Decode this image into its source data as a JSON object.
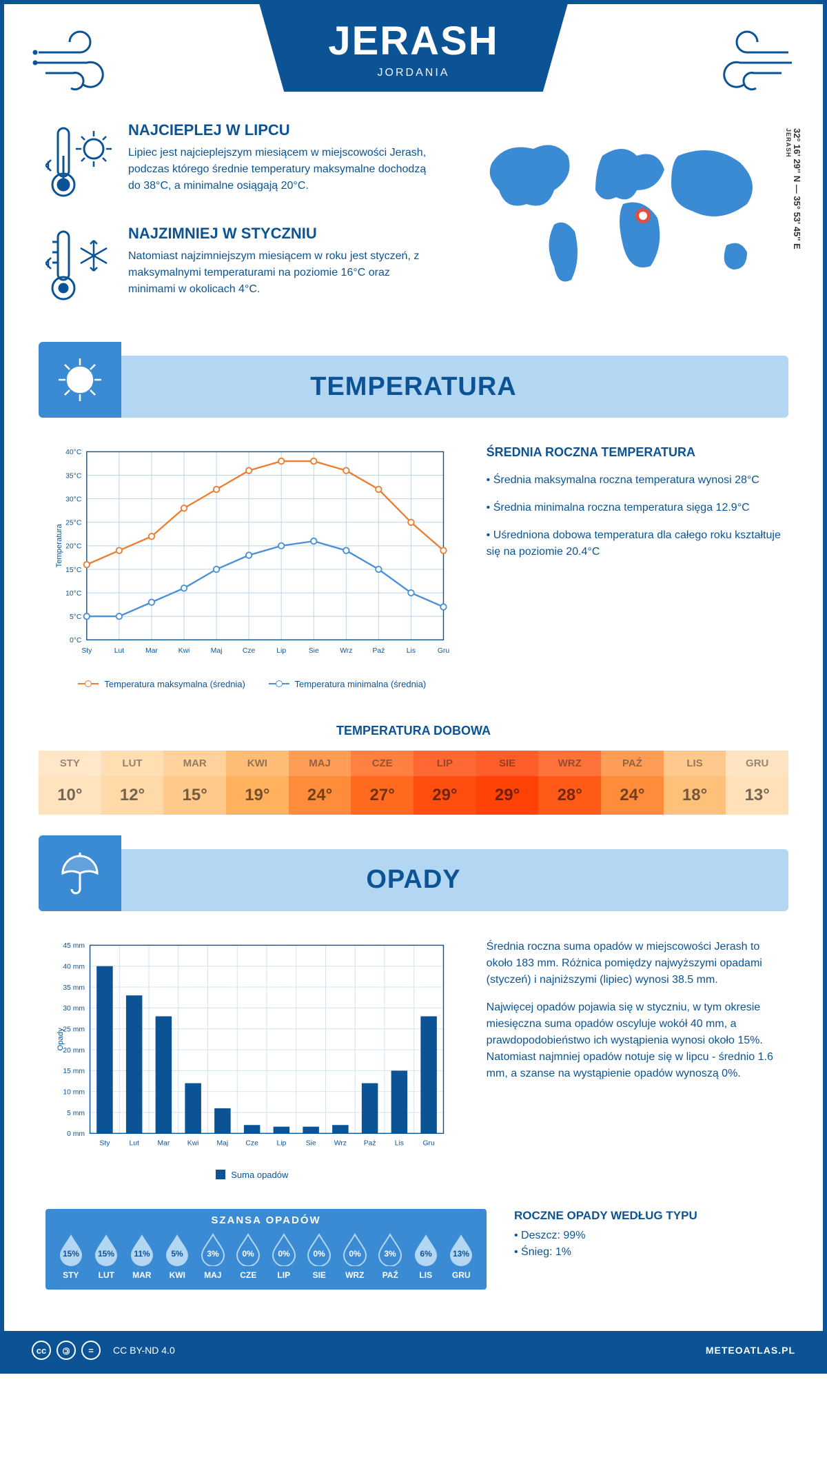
{
  "header": {
    "city": "JERASH",
    "country": "JORDANIA",
    "coordinates": "32° 16' 29'' N — 35° 53' 45'' E",
    "coord_label": "JERASH"
  },
  "facts": {
    "hot": {
      "title": "NAJCIEPLEJ W LIPCU",
      "text": "Lipiec jest najcieplejszym miesiącem w miejscowości Jerash, podczas którego średnie temperatury maksymalne dochodzą do 38°C, a minimalne osiągają 20°C."
    },
    "cold": {
      "title": "NAJZIMNIEJ W STYCZNIU",
      "text": "Natomiast najzimniejszym miesiącem w roku jest styczeń, z maksymalnymi temperaturami na poziomie 16°C oraz minimami w okolicach 4°C."
    }
  },
  "sections": {
    "temperature": "TEMPERATURA",
    "precipitation": "OPADY"
  },
  "temperature": {
    "chart": {
      "type": "line",
      "y_label": "Temperatura",
      "months": [
        "Sty",
        "Lut",
        "Mar",
        "Kwi",
        "Maj",
        "Cze",
        "Lip",
        "Sie",
        "Wrz",
        "Paź",
        "Lis",
        "Gru"
      ],
      "series": {
        "max": {
          "label": "Temperatura maksymalna (średnia)",
          "color": "#ed7d31",
          "values": [
            16,
            19,
            22,
            28,
            32,
            36,
            38,
            38,
            36,
            32,
            25,
            19
          ]
        },
        "min": {
          "label": "Temperatura minimalna (średnia)",
          "color": "#4a90d9",
          "values": [
            5,
            5,
            8,
            11,
            15,
            18,
            20,
            21,
            19,
            15,
            10,
            7
          ]
        }
      },
      "ylim": [
        0,
        40
      ],
      "ytick_step": 5,
      "grid_color": "#b8d4ea",
      "axis_color": "#0b5394",
      "background": "#ffffff",
      "label_fontsize": 11
    },
    "side": {
      "title": "ŚREDNIA ROCZNA TEMPERATURA",
      "bullets": [
        "• Średnia maksymalna roczna temperatura wynosi 28°C",
        "• Średnia minimalna roczna temperatura sięga 12.9°C",
        "• Uśredniona dobowa temperatura dla całego roku kształtuje się na poziomie 20.4°C"
      ]
    },
    "daily": {
      "title": "TEMPERATURA DOBOWA",
      "months": [
        "STY",
        "LUT",
        "MAR",
        "KWI",
        "MAJ",
        "CZE",
        "LIP",
        "SIE",
        "WRZ",
        "PAŹ",
        "LIS",
        "GRU"
      ],
      "values": [
        "10°",
        "12°",
        "15°",
        "19°",
        "24°",
        "27°",
        "29°",
        "29°",
        "28°",
        "24°",
        "18°",
        "13°"
      ],
      "colors": [
        "#ffe3bf",
        "#ffd9a8",
        "#ffc98a",
        "#ffb15e",
        "#ff8c3a",
        "#ff6a1f",
        "#ff4e10",
        "#ff4206",
        "#ff5a17",
        "#ff8c3a",
        "#ffc07a",
        "#ffe0b8"
      ]
    }
  },
  "precipitation": {
    "chart": {
      "type": "bar",
      "y_label": "Opady",
      "months": [
        "Sty",
        "Lut",
        "Mar",
        "Kwi",
        "Maj",
        "Cze",
        "Lip",
        "Sie",
        "Wrz",
        "Paź",
        "Lis",
        "Gru"
      ],
      "values": [
        40,
        33,
        28,
        12,
        6,
        2,
        1.6,
        1.6,
        2,
        12,
        15,
        28
      ],
      "bar_color": "#0b5394",
      "ylim": [
        0,
        45
      ],
      "ytick_step": 5,
      "y_suffix": " mm",
      "grid_color": "#cfe3f2",
      "axis_color": "#0b5394",
      "legend_label": "Suma opadów",
      "label_fontsize": 11
    },
    "side": {
      "p1": "Średnia roczna suma opadów w miejscowości Jerash to około 183 mm. Różnica pomiędzy najwyższymi opadami (styczeń) i najniższymi (lipiec) wynosi 38.5 mm.",
      "p2": "Najwięcej opadów pojawia się w styczniu, w tym okresie miesięczna suma opadów oscyluje wokół 40 mm, a prawdopodobieństwo ich wystąpienia wynosi około 15%. Natomiast najmniej opadów notuje się w lipcu - średnio 1.6 mm, a szanse na wystąpienie opadów wynoszą 0%."
    },
    "chance": {
      "title": "SZANSA OPADÓW",
      "months": [
        "STY",
        "LUT",
        "MAR",
        "KWI",
        "MAJ",
        "CZE",
        "LIP",
        "SIE",
        "WRZ",
        "PAŹ",
        "LIS",
        "GRU"
      ],
      "values": [
        "15%",
        "15%",
        "11%",
        "5%",
        "3%",
        "0%",
        "0%",
        "0%",
        "0%",
        "3%",
        "6%",
        "13%"
      ],
      "filled": [
        true,
        true,
        true,
        true,
        false,
        false,
        false,
        false,
        false,
        false,
        true,
        true
      ],
      "drop_fill": "#b3d7f2",
      "drop_empty_border": "#b3d7f2"
    },
    "type": {
      "title": "ROCZNE OPADY WEDŁUG TYPU",
      "rain": "• Deszcz: 99%",
      "snow": "• Śnieg: 1%"
    }
  },
  "footer": {
    "license": "CC BY-ND 4.0",
    "brand": "METEOATLAS.PL"
  }
}
